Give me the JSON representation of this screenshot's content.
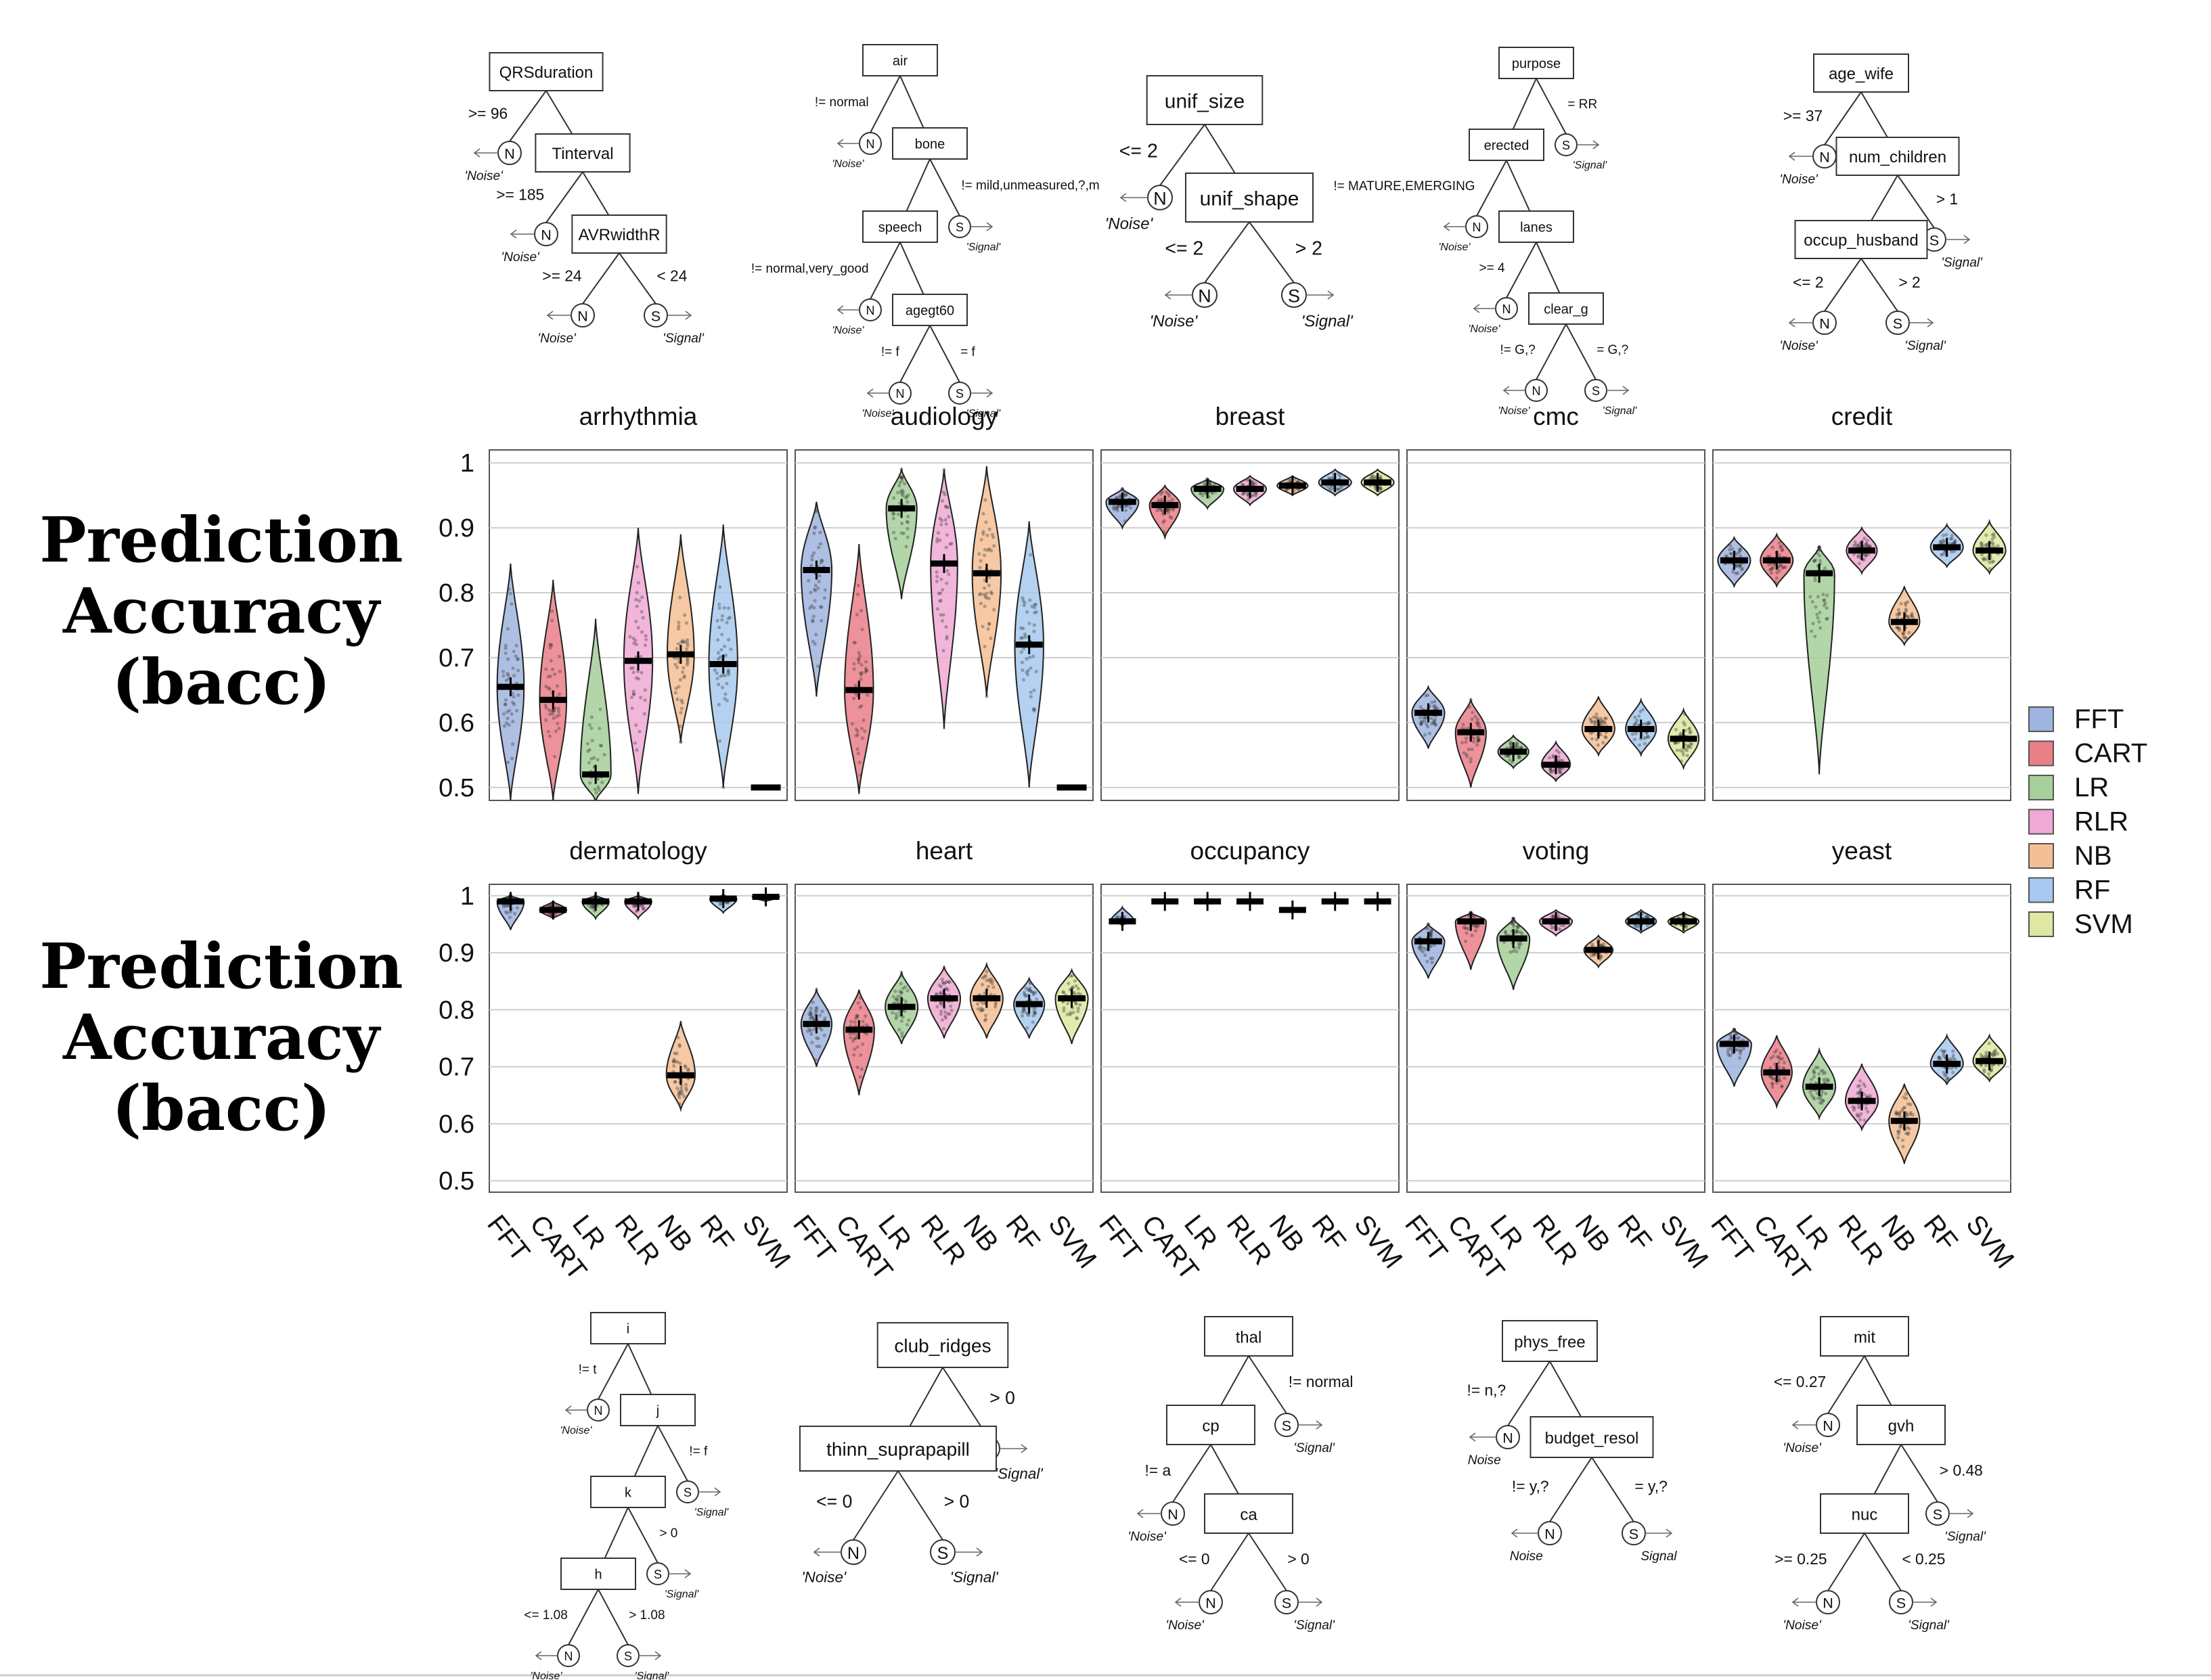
{
  "y_label_lines": [
    "Prediction",
    "Accuracy",
    "(bacc)"
  ],
  "categories": [
    "FFT",
    "CART",
    "LR",
    "RLR",
    "NB",
    "RF",
    "SVM"
  ],
  "colors": {
    "FFT": "#9fb4de",
    "CART": "#ea7f88",
    "LR": "#a6cf9a",
    "RLR": "#f0a9d4",
    "NB": "#f4bf94",
    "RF": "#a8c9ef",
    "SVM": "#dfe7a0"
  },
  "chart_data": [
    {
      "type": "violin",
      "title": "arrhythmia",
      "ylim": [
        0.48,
        1.02
      ],
      "yticks": [
        0.5,
        0.6,
        0.7,
        0.8,
        0.9,
        1
      ],
      "medians": [
        0.655,
        0.635,
        0.52,
        0.695,
        0.705,
        0.69,
        0.5
      ],
      "lows": [
        0.48,
        0.48,
        0.48,
        0.49,
        0.57,
        0.5,
        0.5
      ],
      "highs": [
        0.845,
        0.82,
        0.76,
        0.9,
        0.89,
        0.905,
        0.5
      ],
      "widths": [
        0.7,
        0.7,
        0.8,
        0.75,
        0.7,
        0.75,
        0.0
      ]
    },
    {
      "type": "violin",
      "title": "audiology",
      "ylim": [
        0.48,
        1.02
      ],
      "yticks": [
        0.5,
        0.6,
        0.7,
        0.8,
        0.9,
        1
      ],
      "medians": [
        0.835,
        0.65,
        0.93,
        0.845,
        0.83,
        0.72,
        0.5
      ],
      "lows": [
        0.64,
        0.49,
        0.79,
        0.59,
        0.64,
        0.5,
        0.5
      ],
      "highs": [
        0.94,
        0.875,
        0.99,
        0.99,
        0.995,
        0.91,
        0.5
      ],
      "widths": [
        0.8,
        0.75,
        0.8,
        0.7,
        0.75,
        0.75,
        0.0
      ]
    },
    {
      "type": "violin",
      "title": "breast",
      "ylim": [
        0.48,
        1.02
      ],
      "yticks": [
        0.5,
        0.6,
        0.7,
        0.8,
        0.9,
        1
      ],
      "medians": [
        0.94,
        0.935,
        0.96,
        0.96,
        0.965,
        0.97,
        0.97
      ],
      "lows": [
        0.9,
        0.885,
        0.93,
        0.935,
        0.95,
        0.95,
        0.95
      ],
      "highs": [
        0.96,
        0.965,
        0.975,
        0.98,
        0.98,
        0.99,
        0.99
      ],
      "widths": [
        0.85,
        0.8,
        0.85,
        0.85,
        0.8,
        0.85,
        0.85
      ]
    },
    {
      "type": "violin",
      "title": "cmc",
      "ylim": [
        0.48,
        1.02
      ],
      "yticks": [
        0.5,
        0.6,
        0.7,
        0.8,
        0.9,
        1
      ],
      "medians": [
        0.615,
        0.585,
        0.555,
        0.535,
        0.59,
        0.59,
        0.575
      ],
      "lows": [
        0.56,
        0.5,
        0.53,
        0.51,
        0.55,
        0.55,
        0.53
      ],
      "highs": [
        0.655,
        0.635,
        0.58,
        0.57,
        0.64,
        0.635,
        0.62
      ],
      "widths": [
        0.85,
        0.8,
        0.8,
        0.75,
        0.85,
        0.8,
        0.8
      ]
    },
    {
      "type": "violin",
      "title": "credit",
      "ylim": [
        0.48,
        1.02
      ],
      "yticks": [
        0.5,
        0.6,
        0.7,
        0.8,
        0.9,
        1
      ],
      "medians": [
        0.85,
        0.85,
        0.83,
        0.865,
        0.755,
        0.87,
        0.865
      ],
      "lows": [
        0.81,
        0.81,
        0.52,
        0.83,
        0.72,
        0.84,
        0.83
      ],
      "highs": [
        0.885,
        0.89,
        0.87,
        0.9,
        0.81,
        0.905,
        0.91
      ],
      "widths": [
        0.85,
        0.85,
        0.8,
        0.8,
        0.8,
        0.85,
        0.85
      ]
    },
    {
      "type": "violin",
      "title": "dermatology",
      "ylim": [
        0.48,
        1.02
      ],
      "yticks": [
        0.5,
        0.6,
        0.7,
        0.8,
        0.9,
        1
      ],
      "medians": [
        0.99,
        0.975,
        0.99,
        0.99,
        0.685,
        0.995,
        0.998
      ],
      "lows": [
        0.94,
        0.96,
        0.96,
        0.96,
        0.625,
        0.97,
        0.99
      ],
      "highs": [
        1.0,
        0.99,
        1.0,
        1.0,
        0.78,
        1.0,
        1.0
      ],
      "widths": [
        0.7,
        0.7,
        0.7,
        0.7,
        0.75,
        0.7,
        0.7
      ]
    },
    {
      "type": "violin",
      "title": "heart",
      "ylim": [
        0.48,
        1.02
      ],
      "yticks": [
        0.5,
        0.6,
        0.7,
        0.8,
        0.9,
        1
      ],
      "medians": [
        0.775,
        0.765,
        0.805,
        0.82,
        0.82,
        0.81,
        0.82
      ],
      "lows": [
        0.7,
        0.65,
        0.74,
        0.75,
        0.75,
        0.75,
        0.74
      ],
      "highs": [
        0.835,
        0.835,
        0.865,
        0.875,
        0.88,
        0.855,
        0.87
      ],
      "widths": [
        0.8,
        0.8,
        0.85,
        0.85,
        0.85,
        0.8,
        0.85
      ]
    },
    {
      "type": "violin",
      "title": "occupancy",
      "ylim": [
        0.48,
        1.02
      ],
      "yticks": [
        0.5,
        0.6,
        0.7,
        0.8,
        0.9,
        1
      ],
      "medians": [
        0.955,
        0.99,
        0.99,
        0.99,
        0.975,
        0.99,
        0.99
      ],
      "lows": [
        0.95,
        0.988,
        0.988,
        0.988,
        0.972,
        0.988,
        0.988
      ],
      "highs": [
        0.98,
        0.993,
        0.993,
        0.993,
        0.978,
        0.993,
        0.993
      ],
      "widths": [
        0.6,
        0.6,
        0.6,
        0.6,
        0.6,
        0.6,
        0.6
      ]
    },
    {
      "type": "violin",
      "title": "voting",
      "ylim": [
        0.48,
        1.02
      ],
      "yticks": [
        0.5,
        0.6,
        0.7,
        0.8,
        0.9,
        1
      ],
      "medians": [
        0.92,
        0.955,
        0.925,
        0.955,
        0.905,
        0.955,
        0.955
      ],
      "lows": [
        0.855,
        0.87,
        0.835,
        0.93,
        0.875,
        0.935,
        0.935
      ],
      "highs": [
        0.95,
        0.97,
        0.96,
        0.975,
        0.93,
        0.975,
        0.97
      ],
      "widths": [
        0.85,
        0.8,
        0.85,
        0.85,
        0.75,
        0.8,
        0.8
      ]
    },
    {
      "type": "violin",
      "title": "yeast",
      "ylim": [
        0.48,
        1.02
      ],
      "yticks": [
        0.5,
        0.6,
        0.7,
        0.8,
        0.9,
        1
      ],
      "medians": [
        0.74,
        0.69,
        0.665,
        0.64,
        0.605,
        0.705,
        0.71
      ],
      "lows": [
        0.665,
        0.63,
        0.61,
        0.59,
        0.53,
        0.67,
        0.675
      ],
      "highs": [
        0.765,
        0.755,
        0.73,
        0.705,
        0.67,
        0.755,
        0.755
      ],
      "widths": [
        0.9,
        0.8,
        0.85,
        0.85,
        0.8,
        0.85,
        0.85
      ]
    }
  ],
  "trees_top": [
    {
      "nodes": [
        {
          "id": "QRSduration",
          "label": "QRSduration",
          "leaf": {
            "side": "left",
            "type": "N",
            "text": "'Noise'",
            "edge": ">= 96"
          }
        },
        {
          "id": "Tinterval",
          "label": "Tinterval",
          "leaf": {
            "side": "left",
            "type": "N",
            "text": "'Noise'",
            "edge": ">= 185"
          }
        },
        {
          "id": "AVRwidthR",
          "label": "AVRwidthR",
          "final": {
            "left": {
              "type": "N",
              "text": "'Noise'",
              "edge": ">= 24"
            },
            "right": {
              "type": "S",
              "text": "'Signal'",
              "edge": "< 24"
            }
          }
        }
      ]
    },
    {
      "nodes": [
        {
          "label": "air",
          "leaf": {
            "side": "left",
            "type": "N",
            "text": "'Noise'",
            "edge": "!= normal"
          }
        },
        {
          "label": "bone",
          "leaf": {
            "side": "right",
            "type": "S",
            "text": "'Signal'",
            "edge": "!= mild,unmeasured,?,m"
          }
        },
        {
          "label": "speech",
          "leaf": {
            "side": "left",
            "type": "N",
            "text": "'Noise'",
            "edge": "!= normal,very_good"
          }
        },
        {
          "label": "agegt60",
          "final": {
            "left": {
              "type": "N",
              "text": "'Noise'",
              "edge": "!= f"
            },
            "right": {
              "type": "S",
              "text": "'Signal'",
              "edge": "= f"
            }
          }
        }
      ]
    },
    {
      "nodes": [
        {
          "label": "unif_size",
          "leaf": {
            "side": "left",
            "type": "N",
            "text": "'Noise'",
            "edge": "<= 2"
          }
        },
        {
          "label": "unif_shape",
          "final": {
            "left": {
              "type": "N",
              "text": "'Noise'",
              "edge": "<= 2"
            },
            "right": {
              "type": "S",
              "text": "'Signal'",
              "edge": "> 2"
            }
          }
        }
      ]
    },
    {
      "nodes": [
        {
          "label": "purpose",
          "leaf": {
            "side": "right",
            "type": "S",
            "text": "'Signal'",
            "edge": "= RR"
          }
        },
        {
          "label": "erected",
          "leaf": {
            "side": "left",
            "type": "N",
            "text": "'Noise'",
            "edge": "!= MATURE,EMERGING"
          }
        },
        {
          "label": "lanes",
          "leaf": {
            "side": "left",
            "type": "N",
            "text": "'Noise'",
            "edge": ">= 4"
          }
        },
        {
          "label": "clear_g",
          "final": {
            "left": {
              "type": "N",
              "text": "'Noise'",
              "edge": "!= G,?"
            },
            "right": {
              "type": "S",
              "text": "'Signal'",
              "edge": "= G,?"
            }
          }
        }
      ]
    },
    {
      "nodes": [
        {
          "label": "age_wife",
          "leaf": {
            "side": "left",
            "type": "N",
            "text": "'Noise'",
            "edge": ">= 37"
          }
        },
        {
          "label": "num_children",
          "leaf": {
            "side": "right",
            "type": "S",
            "text": "'Signal'",
            "edge": "> 1"
          }
        },
        {
          "label": "occup_husband",
          "final": {
            "left": {
              "type": "N",
              "text": "'Noise'",
              "edge": "<= 2"
            },
            "right": {
              "type": "S",
              "text": "'Signal'",
              "edge": "> 2"
            }
          }
        }
      ]
    }
  ],
  "trees_bottom": [
    {
      "nodes": [
        {
          "label": "i",
          "leaf": {
            "side": "left",
            "type": "N",
            "text": "'Noise'",
            "edge": "!= t"
          }
        },
        {
          "label": "j",
          "leaf": {
            "side": "right",
            "type": "S",
            "text": "'Signal'",
            "edge": "!= f"
          }
        },
        {
          "label": "k",
          "leaf": {
            "side": "right",
            "type": "S",
            "text": "'Signal'",
            "edge": "> 0"
          }
        },
        {
          "label": "h",
          "final": {
            "left": {
              "type": "N",
              "text": "'Noise'",
              "edge": "<= 1.08"
            },
            "right": {
              "type": "S",
              "text": "'Signal'",
              "edge": "> 1.08"
            }
          }
        }
      ]
    },
    {
      "nodes": [
        {
          "label": "club_ridges",
          "leaf": {
            "side": "right",
            "type": "S",
            "text": "'Signal'",
            "edge": "> 0"
          }
        },
        {
          "label": "thinn_suprapapill",
          "final": {
            "left": {
              "type": "N",
              "text": "'Noise'",
              "edge": "<= 0"
            },
            "right": {
              "type": "S",
              "text": "'Signal'",
              "edge": "> 0"
            }
          }
        }
      ]
    },
    {
      "nodes": [
        {
          "label": "thal",
          "leaf": {
            "side": "right",
            "type": "S",
            "text": "'Signal'",
            "edge": "!= normal"
          }
        },
        {
          "label": "cp",
          "leaf": {
            "side": "left",
            "type": "N",
            "text": "'Noise'",
            "edge": "!= a"
          }
        },
        {
          "label": "ca",
          "final": {
            "left": {
              "type": "N",
              "text": "'Noise'",
              "edge": "<= 0"
            },
            "right": {
              "type": "S",
              "text": "'Signal'",
              "edge": "> 0"
            }
          }
        }
      ]
    },
    {
      "nodes": [
        {
          "label": "phys_free",
          "leaf": {
            "side": "left",
            "type": "N",
            "text": "Noise",
            "edge": "!= n,?"
          }
        },
        {
          "label": "budget_resol",
          "final": {
            "left": {
              "type": "N",
              "text": "Noise",
              "edge": "!= y,?"
            },
            "right": {
              "type": "S",
              "text": "Signal",
              "edge": "= y,?"
            }
          }
        }
      ]
    },
    {
      "nodes": [
        {
          "label": "mit",
          "leaf": {
            "side": "left",
            "type": "N",
            "text": "'Noise'",
            "edge": "<= 0.27"
          }
        },
        {
          "label": "gvh",
          "leaf": {
            "side": "right",
            "type": "S",
            "text": "'Signal'",
            "edge": "> 0.48"
          }
        },
        {
          "label": "nuc",
          "final": {
            "left": {
              "type": "N",
              "text": "'Noise'",
              "edge": ">= 0.25"
            },
            "right": {
              "type": "S",
              "text": "'Signal'",
              "edge": "< 0.25"
            }
          }
        }
      ]
    }
  ]
}
